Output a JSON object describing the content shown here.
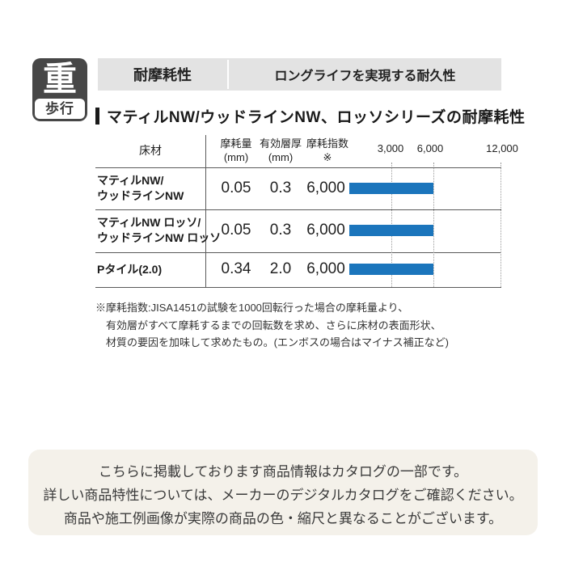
{
  "badge": {
    "top_kanji": "重",
    "bottom_label": "歩行"
  },
  "titlebar": {
    "left_label": "耐摩耗性",
    "right_label": "ロングライフを実現する耐久性"
  },
  "section_title": "マティルNW/ウッドラインNW、ロッソシリーズの耐摩耗性",
  "table": {
    "headers": {
      "material": "床材",
      "wear_l1": "摩耗量",
      "wear_l2": "(mm)",
      "layer_l1": "有効層厚",
      "layer_l2": "(mm)",
      "index_l1": "摩耗指数",
      "index_l2": "※"
    },
    "rows": [
      {
        "name1": "マティルNW/",
        "name2": "ウッドラインNW",
        "wear": "0.05",
        "layer": "0.3",
        "index": "6,000"
      },
      {
        "name1": "マティルNW ロッソ/",
        "name2": "ウッドラインNW ロッソ",
        "wear": "0.05",
        "layer": "0.3",
        "index": "6,000"
      },
      {
        "name1": "Pタイル(2.0)",
        "name2": "",
        "wear": "0.34",
        "layer": "2.0",
        "index": "6,000"
      }
    ]
  },
  "chart_data": {
    "type": "bar",
    "orientation": "horizontal",
    "title": "マティルNW/ウッドラインNW、ロッソシリーズの耐摩耗性",
    "categories": [
      "マティルNW/ウッドラインNW",
      "マティルNW ロッソ/ウッドラインNW ロッソ",
      "Pタイル(2.0)"
    ],
    "values": [
      6000,
      6000,
      6000
    ],
    "value_label": "摩耗指数※",
    "xlim": [
      0,
      12000
    ],
    "tick_labels": [
      "3,000",
      "6,000",
      "12,000"
    ],
    "tick_values": [
      3000,
      6000,
      12000
    ],
    "grid": "dotted-vertical",
    "legend": "none"
  },
  "footnote": {
    "line1": "※摩耗指数:JISA1451の試験を1000回転行った場合の摩耗量より、",
    "line2": "有効層がすべて摩耗するまでの回転数を求め、さらに床材の表面形状、",
    "line3": "材質の要因を加味して求めたもの。(エンボスの場合はマイナス補正など)"
  },
  "notice": {
    "line1": "こちらに掲載しております商品情報はカタログの一部です。",
    "line2": "詳しい商品特性については、メーカーのデジタルカタログをご確認ください。",
    "line3": "商品や施工例画像が実際の商品の色・縮尺と異なることがございます。"
  },
  "colors": {
    "bar_blue": "#1b75bc",
    "header_gray": "#e3e3e3",
    "notice_bg": "#f4f1ea",
    "badge_dark": "#474747",
    "line_dark": "#5a5a5a"
  }
}
